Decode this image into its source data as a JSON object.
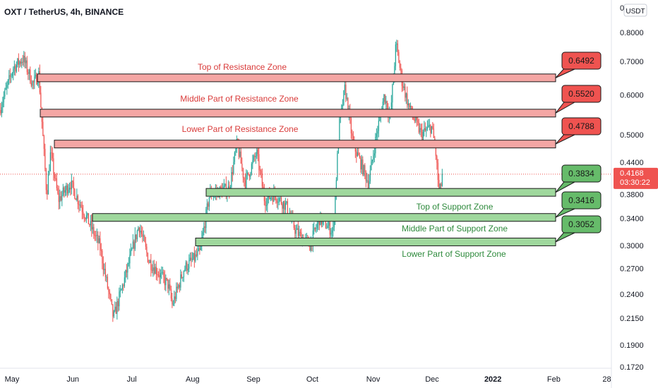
{
  "chart_data": {
    "type": "candlestick",
    "title": "OXT / TetherUS, 4h, BINANCE",
    "currency_badge": "USDT",
    "y_scale": "log",
    "ylim": [
      0.1705,
      0.86
    ],
    "x_ticks": [
      "May",
      "Jun",
      "Jul",
      "Aug",
      "Sep",
      "Oct",
      "Nov",
      "Dec",
      "2022",
      "Feb",
      "28"
    ],
    "y_ticks": [
      0.8,
      0.7,
      0.6,
      0.5,
      0.44,
      0.38,
      0.34,
      0.3,
      0.27,
      0.24,
      0.215,
      0.19
    ],
    "y_tick_labels": [
      "0.8000",
      "0.7000",
      "0.6000",
      "0.5000",
      "0.4400",
      "0.3800",
      "0.3400",
      "0.3000",
      "0.2700",
      "0.2400",
      "0.2150",
      "0.1900"
    ],
    "top_tick_label": "0",
    "bottom_tick_label": "0.1720",
    "current_price": {
      "value": 0.4168,
      "label": "0.4168",
      "countdown": "03:30:22"
    },
    "zones": [
      {
        "name": "Top of Resistance Zone",
        "value": 0.6492,
        "label": "0.6492",
        "kind": "resistance"
      },
      {
        "name": "Middle Part of Resistance Zone",
        "value": 0.552,
        "label": "0.5520",
        "kind": "resistance"
      },
      {
        "name": "Lower Part of Resistance Zone",
        "value": 0.4788,
        "label": "0.4788",
        "kind": "resistance"
      },
      {
        "name": "Top of Support Zone",
        "value": 0.3834,
        "label": "0.3834",
        "kind": "support"
      },
      {
        "name": "Middle Part of Support Zone",
        "value": 0.3416,
        "label": "0.3416",
        "kind": "support"
      },
      {
        "name": "Lower Part of Support Zone",
        "value": 0.3052,
        "label": "0.3052",
        "kind": "support"
      }
    ],
    "price_path": [
      {
        "date": "2021-04-25",
        "close": 0.56
      },
      {
        "date": "2021-05-02",
        "close": 0.68
      },
      {
        "date": "2021-05-07",
        "close": 0.71
      },
      {
        "date": "2021-05-12",
        "close": 0.63
      },
      {
        "date": "2021-05-15",
        "close": 0.66
      },
      {
        "date": "2021-05-19",
        "close": 0.38
      },
      {
        "date": "2021-05-21",
        "close": 0.46
      },
      {
        "date": "2021-05-25",
        "close": 0.37
      },
      {
        "date": "2021-05-31",
        "close": 0.4
      },
      {
        "date": "2021-06-07",
        "close": 0.35
      },
      {
        "date": "2021-06-15",
        "close": 0.3
      },
      {
        "date": "2021-06-22",
        "close": 0.215
      },
      {
        "date": "2021-06-28",
        "close": 0.26
      },
      {
        "date": "2021-07-05",
        "close": 0.33
      },
      {
        "date": "2021-07-10",
        "close": 0.28
      },
      {
        "date": "2021-07-20",
        "close": 0.25
      },
      {
        "date": "2021-07-22",
        "close": 0.228
      },
      {
        "date": "2021-07-28",
        "close": 0.27
      },
      {
        "date": "2021-08-05",
        "close": 0.29
      },
      {
        "date": "2021-08-10",
        "close": 0.38
      },
      {
        "date": "2021-08-20",
        "close": 0.39
      },
      {
        "date": "2021-08-24",
        "close": 0.48
      },
      {
        "date": "2021-08-28",
        "close": 0.4
      },
      {
        "date": "2021-09-03",
        "close": 0.46
      },
      {
        "date": "2021-09-07",
        "close": 0.37
      },
      {
        "date": "2021-09-12",
        "close": 0.38
      },
      {
        "date": "2021-09-18",
        "close": 0.36
      },
      {
        "date": "2021-09-23",
        "close": 0.32
      },
      {
        "date": "2021-09-30",
        "close": 0.3
      },
      {
        "date": "2021-10-05",
        "close": 0.34
      },
      {
        "date": "2021-10-12",
        "close": 0.32
      },
      {
        "date": "2021-10-15",
        "close": 0.52
      },
      {
        "date": "2021-10-18",
        "close": 0.62
      },
      {
        "date": "2021-10-22",
        "close": 0.48
      },
      {
        "date": "2021-10-30",
        "close": 0.4
      },
      {
        "date": "2021-11-03",
        "close": 0.5
      },
      {
        "date": "2021-11-07",
        "close": 0.6
      },
      {
        "date": "2021-11-10",
        "close": 0.54
      },
      {
        "date": "2021-11-13",
        "close": 0.76
      },
      {
        "date": "2021-11-16",
        "close": 0.64
      },
      {
        "date": "2021-11-20",
        "close": 0.56
      },
      {
        "date": "2021-11-26",
        "close": 0.5
      },
      {
        "date": "2021-12-01",
        "close": 0.52
      },
      {
        "date": "2021-12-03",
        "close": 0.47
      },
      {
        "date": "2021-12-05",
        "close": 0.38
      },
      {
        "date": "2021-12-07",
        "close": 0.4168
      }
    ]
  }
}
